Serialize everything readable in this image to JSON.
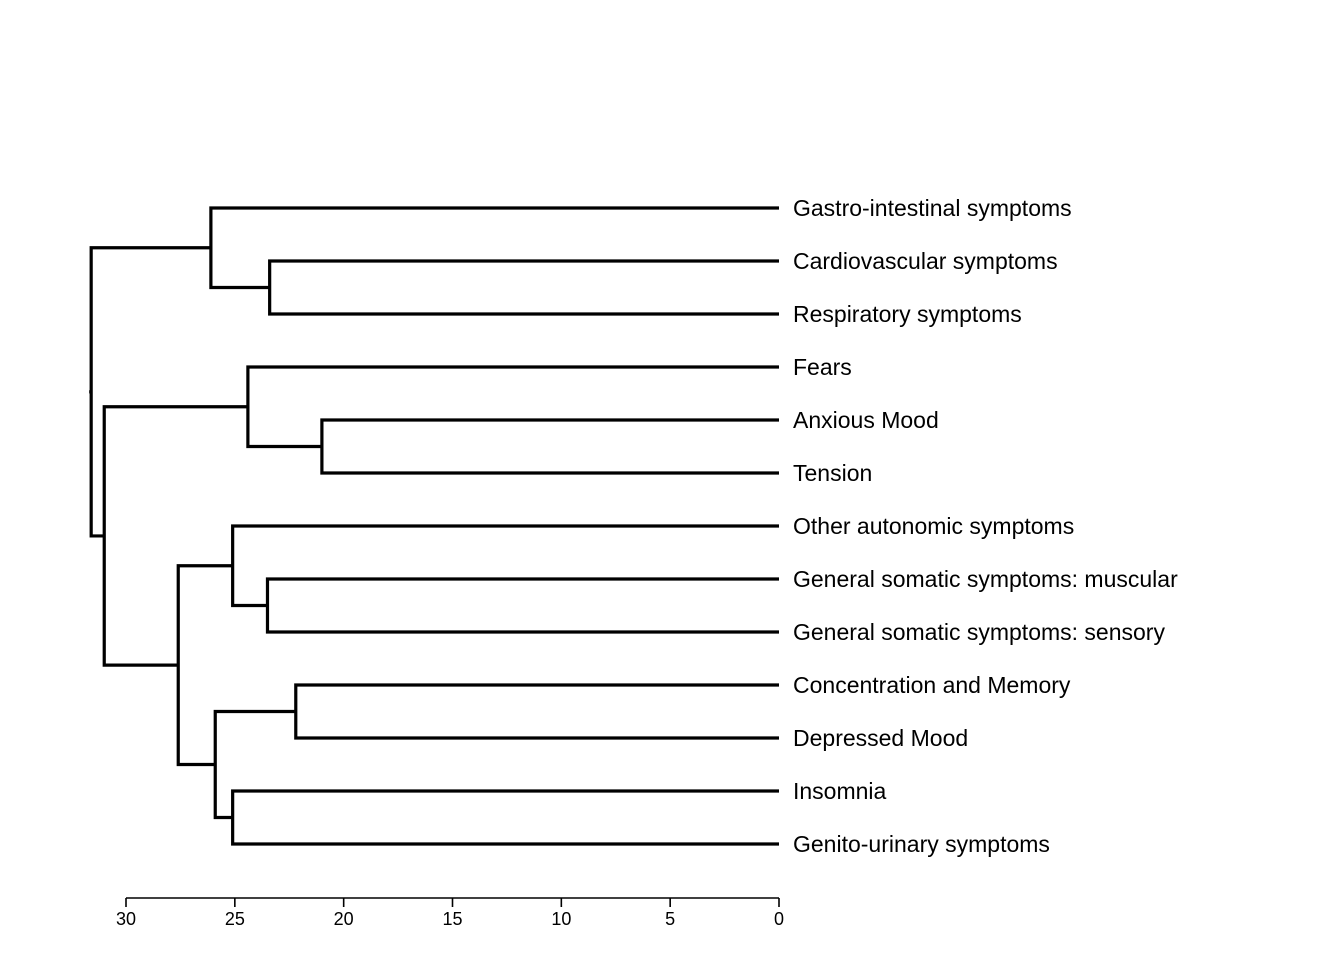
{
  "chart_data": {
    "type": "dendrogram",
    "orientation": "leaves-right",
    "title": "",
    "xlabel": "",
    "ylabel": "",
    "xlim": [
      30,
      0
    ],
    "xticks": [
      30,
      25,
      20,
      15,
      10,
      5,
      0
    ],
    "xtick_labels": [
      "30",
      "25",
      "20",
      "15",
      "10",
      "5",
      "0"
    ],
    "line_color": "#000000",
    "leaves": [
      "Gastro-intestinal symptoms",
      "Cardiovascular symptoms",
      "Respiratory symptoms",
      "Fears",
      "Anxious Mood",
      "Tension",
      "Other autonomic symptoms",
      "General somatic symptoms: muscular",
      "General somatic symptoms: sensory",
      "Concentration and Memory",
      "Depressed Mood",
      "Insomnia",
      "Genito-urinary symptoms"
    ],
    "merges": [
      {
        "id": "c1",
        "left": 1,
        "right": 2,
        "height": 23.4
      },
      {
        "id": "c2",
        "left": 0,
        "right": "c1",
        "height": 26.1
      },
      {
        "id": "c3",
        "left": 4,
        "right": 5,
        "height": 21.0
      },
      {
        "id": "c4",
        "left": 3,
        "right": "c3",
        "height": 24.4
      },
      {
        "id": "c5",
        "left": 7,
        "right": 8,
        "height": 23.5
      },
      {
        "id": "c6",
        "left": 6,
        "right": "c5",
        "height": 25.1
      },
      {
        "id": "c7",
        "left": 9,
        "right": 10,
        "height": 22.2
      },
      {
        "id": "c8",
        "left": 11,
        "right": 12,
        "height": 25.1
      },
      {
        "id": "c9",
        "left": "c7",
        "right": "c8",
        "height": 25.9
      },
      {
        "id": "c10",
        "left": "c6",
        "right": "c9",
        "height": 27.6
      },
      {
        "id": "c11",
        "left": "c4",
        "right": "c10",
        "height": 31.0
      },
      {
        "id": "c12",
        "left": "c2",
        "right": "c11",
        "height": 31.6
      }
    ]
  }
}
